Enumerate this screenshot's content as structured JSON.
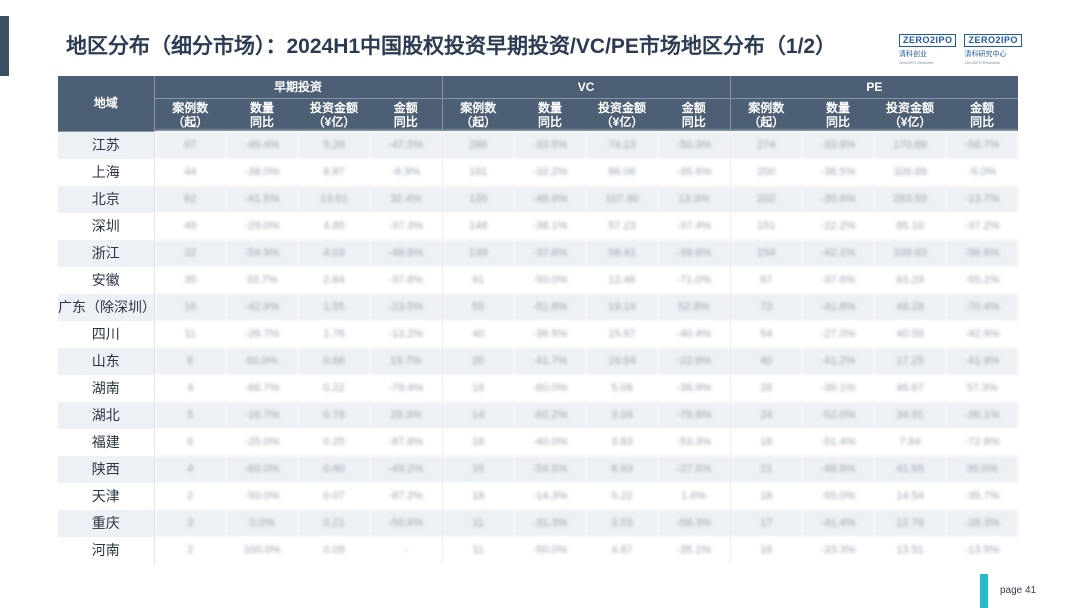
{
  "title": "地区分布（细分市场）：2024H1中国股权投资早期投资/VC/PE市场地区分布（1/2）",
  "logos": [
    {
      "mark": "ZERO2IPO",
      "cn": "清科创业",
      "en": "Zero2IPO Ventures"
    },
    {
      "mark": "ZERO2IPO",
      "cn": "清科研究中心",
      "en": "Zero2IPO Research"
    }
  ],
  "table": {
    "region_header": "地域",
    "groups": [
      "早期投资",
      "VC",
      "PE"
    ],
    "sub_headers": [
      "案例数\n（起）",
      "数量\n同比",
      "投资金额\n（¥亿）",
      "金额\n同比"
    ],
    "rows": [
      {
        "region": "江苏",
        "values": [
          "67",
          "-46.4%",
          "5.26",
          "-47.5%",
          "286",
          "-33.5%",
          "74.13",
          "-50.3%",
          "274",
          "-33.8%",
          "170.89",
          "-56.7%"
        ]
      },
      {
        "region": "上海",
        "values": [
          "44",
          "-38.0%",
          "8.87",
          "-8.9%",
          "181",
          "-32.2%",
          "86.06",
          "-35.6%",
          "200",
          "-36.5%",
          "326.89",
          "-9.0%"
        ]
      },
      {
        "region": "北京",
        "values": [
          "62",
          "-41.5%",
          "13.61",
          "32.4%",
          "135",
          "-48.9%",
          "107.90",
          "13.3%",
          "202",
          "-30.6%",
          "283.55",
          "-13.7%"
        ]
      },
      {
        "region": "深圳",
        "values": [
          "49",
          "-29.0%",
          "4.85",
          "-37.3%",
          "148",
          "-38.1%",
          "57.23",
          "-37.4%",
          "151",
          "-22.2%",
          "85.10",
          "-37.2%"
        ]
      },
      {
        "region": "浙江",
        "values": [
          "32",
          "-54.9%",
          "4.03",
          "-48.8%",
          "139",
          "-37.6%",
          "58.41",
          "-39.6%",
          "154",
          "-42.1%",
          "109.83",
          "-56.6%"
        ]
      },
      {
        "region": "安徽",
        "values": [
          "35",
          "33.7%",
          "2.84",
          "-37.8%",
          "61",
          "-50.0%",
          "12.46",
          "-71.0%",
          "67",
          "-37.6%",
          "63.29",
          "-55.2%"
        ]
      },
      {
        "region": "广东（除深圳）",
        "values": [
          "16",
          "-42.9%",
          "1.55",
          "-23.5%",
          "55",
          "-51.8%",
          "19.14",
          "52.8%",
          "73",
          "-41.8%",
          "48.28",
          "-70.4%"
        ]
      },
      {
        "region": "四川",
        "values": [
          "11",
          "-26.7%",
          "1.76",
          "-13.2%",
          "40",
          "-36.5%",
          "15.87",
          "-40.4%",
          "54",
          "-27.0%",
          "40.59",
          "-42.9%"
        ]
      },
      {
        "region": "山东",
        "values": [
          "8",
          "60.0%",
          "0.66",
          "19.7%",
          "35",
          "-41.7%",
          "16.64",
          "-22.8%",
          "40",
          "-41.2%",
          "17.25",
          "-41.9%"
        ]
      },
      {
        "region": "湖南",
        "values": [
          "4",
          "-66.7%",
          "0.22",
          "-79.4%",
          "16",
          "-60.0%",
          "5.09",
          "-36.9%",
          "28",
          "-39.1%",
          "46.67",
          "57.3%"
        ]
      },
      {
        "region": "湖北",
        "values": [
          "5",
          "-16.7%",
          "0.78",
          "29.3%",
          "14",
          "-62.2%",
          "3.24",
          "-79.8%",
          "24",
          "-52.0%",
          "34.91",
          "-36.1%"
        ]
      },
      {
        "region": "福建",
        "values": [
          "6",
          "-25.0%",
          "0.25",
          "-87.8%",
          "18",
          "-40.0%",
          "3.83",
          "-53.3%",
          "18",
          "-51.4%",
          "7.84",
          "-72.8%"
        ]
      },
      {
        "region": "陕西",
        "values": [
          "4",
          "-60.0%",
          "0.60",
          "-49.2%",
          "15",
          "-54.5%",
          "8.93",
          "-27.5%",
          "21",
          "-48.8%",
          "41.55",
          "35.0%"
        ]
      },
      {
        "region": "天津",
        "values": [
          "2",
          "-50.0%",
          "0.07",
          "-87.2%",
          "18",
          "-14.3%",
          "5.22",
          "1.6%",
          "18",
          "-55.0%",
          "14.54",
          "-35.7%"
        ]
      },
      {
        "region": "重庆",
        "values": [
          "3",
          "0.0%",
          "0.21",
          "-50.6%",
          "11",
          "-31.3%",
          "3.53",
          "-58.3%",
          "17",
          "-41.4%",
          "12.76",
          "-26.3%"
        ]
      },
      {
        "region": "河南",
        "values": [
          "2",
          "100.0%",
          "0.09",
          "-",
          "11",
          "-50.0%",
          "4.87",
          "-35.1%",
          "16",
          "-33.3%",
          "13.51",
          "-13.5%"
        ]
      }
    ]
  },
  "page_label": "page  41",
  "colors": {
    "header_bg": "#4c5f74",
    "row_alt_bg": "#edf0f4",
    "title_color": "#2b3b51",
    "accent_bar": "#3d4f63",
    "page_tag": "#25b8c9"
  }
}
